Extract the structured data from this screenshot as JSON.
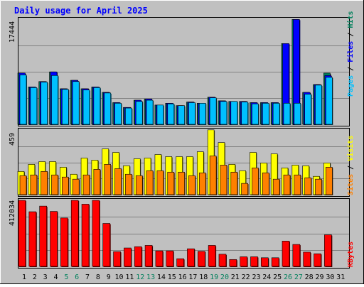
{
  "title": "Daily usage for April 2025",
  "colors": {
    "background": "#c0c0c0",
    "hits": "#00805c",
    "files": "#0000ff",
    "pages": "#00c0ff",
    "visits": "#ffff00",
    "sites": "#ff8000",
    "kbytes": "#ff0000",
    "title": "#0000ff",
    "weekend_day": "#00805c",
    "weekday_day": "#000000"
  },
  "chart_data": [
    {
      "type": "bar",
      "panel": "hits-files-pages",
      "ymax_label": "17444",
      "ylim": [
        0,
        17444
      ],
      "legend": [
        "Pages",
        "/",
        "Files",
        "/",
        "Hits"
      ],
      "x": [
        1,
        2,
        3,
        4,
        5,
        6,
        7,
        8,
        9,
        10,
        11,
        12,
        13,
        14,
        15,
        16,
        17,
        18,
        19,
        20,
        21,
        22,
        23,
        24,
        25,
        26,
        27,
        28,
        29,
        30
      ],
      "series": [
        {
          "name": "Hits",
          "values": [
            8500,
            6200,
            7100,
            8700,
            5900,
            7300,
            5900,
            6200,
            5300,
            3600,
            2800,
            4000,
            4200,
            3200,
            3500,
            3100,
            3700,
            3500,
            4500,
            3900,
            3800,
            3800,
            3600,
            3600,
            3600,
            13400,
            17400,
            5300,
            6600,
            8500
          ]
        },
        {
          "name": "Files",
          "values": [
            8500,
            6200,
            7100,
            8700,
            5900,
            7300,
            5900,
            6200,
            5300,
            3600,
            2800,
            4000,
            4200,
            3200,
            3500,
            3100,
            3700,
            3500,
            4500,
            3900,
            3800,
            3800,
            3600,
            3600,
            3600,
            13400,
            17400,
            5300,
            6600,
            8100
          ]
        },
        {
          "name": "Pages",
          "values": [
            8200,
            6100,
            7000,
            8100,
            5800,
            7100,
            5700,
            6100,
            5200,
            3500,
            2700,
            3800,
            4000,
            3200,
            3400,
            3100,
            3600,
            3500,
            4400,
            3800,
            3800,
            3700,
            3400,
            3500,
            3500,
            3500,
            3500,
            5000,
            6500,
            7800
          ]
        }
      ]
    },
    {
      "type": "bar",
      "panel": "visits-sites",
      "ymax_label": "459",
      "ylim": [
        0,
        459
      ],
      "legend": [
        "Sites",
        "/",
        "Visits"
      ],
      "x": [
        1,
        2,
        3,
        4,
        5,
        6,
        7,
        8,
        9,
        10,
        11,
        12,
        13,
        14,
        15,
        16,
        17,
        18,
        19,
        20,
        21,
        22,
        23,
        24,
        25,
        26,
        27,
        28,
        29,
        30
      ],
      "series": [
        {
          "name": "Visits",
          "values": [
            165,
            215,
            235,
            235,
            195,
            145,
            260,
            245,
            325,
            300,
            205,
            255,
            260,
            285,
            270,
            270,
            270,
            305,
            460,
            370,
            215,
            170,
            300,
            225,
            290,
            190,
            210,
            205,
            130,
            225
          ]
        },
        {
          "name": "Sites",
          "values": [
            135,
            140,
            165,
            140,
            125,
            110,
            140,
            180,
            215,
            185,
            145,
            135,
            170,
            170,
            160,
            160,
            135,
            155,
            275,
            210,
            160,
            80,
            190,
            155,
            110,
            140,
            140,
            120,
            110,
            195
          ]
        }
      ]
    },
    {
      "type": "bar",
      "panel": "kbytes",
      "ymax_label": "412034",
      "ylim": [
        0,
        412034
      ],
      "legend": [
        "KBytes"
      ],
      "x": [
        1,
        2,
        3,
        4,
        5,
        6,
        7,
        8,
        9,
        10,
        11,
        12,
        13,
        14,
        15,
        16,
        17,
        18,
        19,
        20,
        21,
        22,
        23,
        24,
        25,
        26,
        27,
        28,
        29,
        30
      ],
      "series": [
        {
          "name": "KBytes",
          "values": [
            412000,
            341000,
            376000,
            343000,
            302000,
            412000,
            388000,
            412000,
            268000,
            92000,
            115000,
            123000,
            131000,
            97000,
            97000,
            48000,
            110000,
            94000,
            131000,
            76000,
            43000,
            60000,
            60000,
            54000,
            54000,
            158000,
            137000,
            89000,
            79000,
            197000
          ]
        }
      ]
    }
  ],
  "x_axis": {
    "days": [
      "1",
      "2",
      "3",
      "4",
      "5",
      "6",
      "7",
      "8",
      "9",
      "10",
      "11",
      "12",
      "13",
      "14",
      "15",
      "16",
      "17",
      "18",
      "19",
      "20",
      "21",
      "22",
      "23",
      "24",
      "25",
      "26",
      "27",
      "28",
      "29",
      "30",
      "31"
    ],
    "weekend": [
      5,
      6,
      12,
      13,
      19,
      20,
      26,
      27
    ]
  }
}
